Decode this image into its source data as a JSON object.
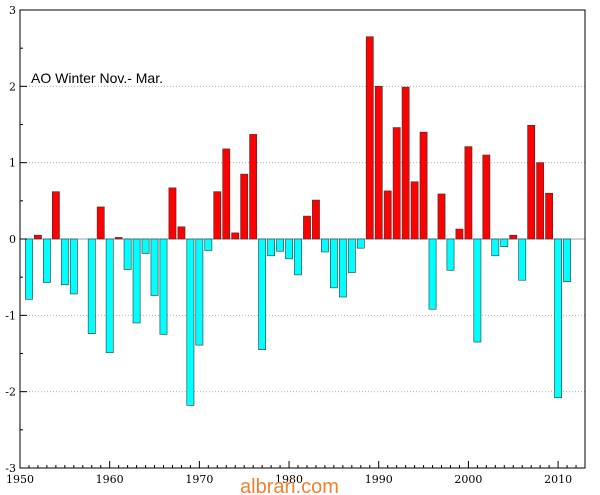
{
  "chart_data": {
    "type": "bar",
    "title": "AO Winter Nov.- Mar.",
    "xlabel": "",
    "ylabel": "",
    "xlim": [
      1950,
      2013
    ],
    "ylim": [
      -3,
      3
    ],
    "x_ticks": [
      1950,
      1960,
      1970,
      1980,
      1990,
      2000,
      2010
    ],
    "y_ticks": [
      -3,
      -2,
      -1,
      0,
      1,
      2,
      3
    ],
    "grid": "horizontal-dotted",
    "colors": {
      "positive": "#ff0000",
      "negative": "#00ffff",
      "edge": "#333333"
    },
    "series": [
      {
        "x": [
          1951,
          1952,
          1953,
          1954,
          1955,
          1956,
          1957,
          1958,
          1959,
          1960,
          1961,
          1962,
          1963,
          1964,
          1965,
          1966,
          1967,
          1968,
          1969,
          1970,
          1971,
          1972,
          1973,
          1974,
          1975,
          1976,
          1977,
          1978,
          1979,
          1980,
          1981,
          1982,
          1983,
          1984,
          1985,
          1986,
          1987,
          1988,
          1989,
          1990,
          1991,
          1992,
          1993,
          1994,
          1995,
          1996,
          1997,
          1998,
          1999,
          2000,
          2001,
          2002,
          2003,
          2004,
          2005,
          2006,
          2007,
          2008,
          2009,
          2010,
          2011
        ],
        "values": [
          -0.79,
          0.05,
          -0.57,
          0.62,
          -0.6,
          -0.72,
          0,
          -1.24,
          0.42,
          -1.49,
          0.02,
          -0.4,
          -1.1,
          -0.19,
          -0.74,
          -1.25,
          0.67,
          0.16,
          -2.18,
          -1.39,
          -0.15,
          0.62,
          1.18,
          0.08,
          0.85,
          1.37,
          -1.45,
          -0.22,
          -0.16,
          -0.26,
          -0.47,
          0.3,
          0.51,
          -0.17,
          -0.64,
          -0.76,
          -0.44,
          -0.12,
          2.65,
          2.0,
          0.63,
          1.46,
          1.99,
          0.75,
          1.4,
          -0.92,
          0.59,
          -0.41,
          0.13,
          1.21,
          -1.35,
          1.1,
          -0.22,
          -0.1,
          0.05,
          -0.54,
          1.49,
          1.0,
          0.6,
          -2.08,
          -0.56
        ]
      }
    ]
  },
  "watermark": "albrari.com"
}
